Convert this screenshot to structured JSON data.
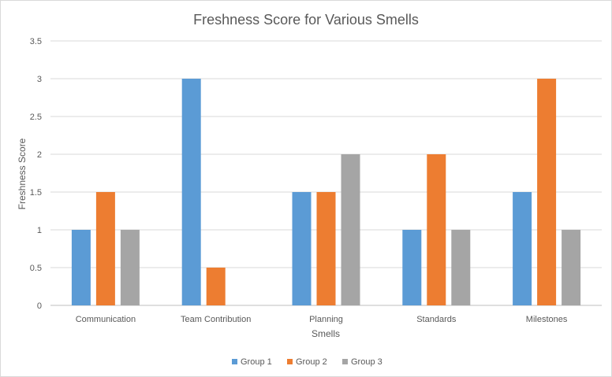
{
  "chart_data": {
    "type": "bar",
    "title": "Freshness Score for Various Smells",
    "xlabel": "Smells",
    "ylabel": "Freshness Score",
    "categories": [
      "Communication",
      "Team Contribution",
      "Planning",
      "Standards",
      "Milestones"
    ],
    "series": [
      {
        "name": "Group 1",
        "color": "#5b9bd5",
        "values": [
          1,
          3,
          1.5,
          1,
          1.5
        ]
      },
      {
        "name": "Group 2",
        "color": "#ed7d31",
        "values": [
          1.5,
          0.5,
          1.5,
          2,
          3
        ]
      },
      {
        "name": "Group 3",
        "color": "#a5a5a5",
        "values": [
          1,
          0,
          2,
          1,
          1
        ]
      }
    ],
    "ylim": [
      0,
      3.5
    ],
    "yticks": [
      "0",
      "0.5",
      "1",
      "1.5",
      "2",
      "2.5",
      "3",
      "3.5"
    ],
    "grid": true,
    "legend_position": "bottom"
  }
}
